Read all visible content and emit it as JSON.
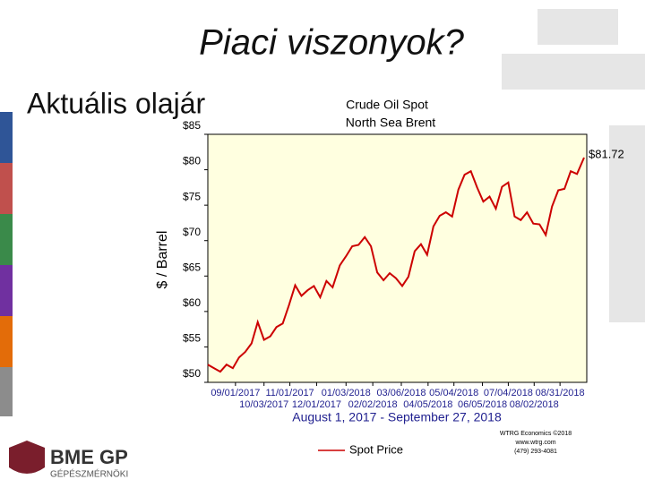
{
  "header": {
    "title": "Piaci viszonyok?",
    "subtitle": "Aktuális olajár"
  },
  "logo": {
    "name": "BME GP",
    "subtitle": "GÉPÉSZMÉRNÖKI"
  },
  "chart_data": {
    "type": "line",
    "title": "Crude Oil Spot",
    "subtitle": "North Sea Brent",
    "y_label": "$ / Barrel",
    "x_label": "August 1, 2017 - September 27, 2018",
    "annotation": "$81.72",
    "credits": [
      "WTRG Economics ©2018",
      "www.wtrg.com",
      "(479) 293-4081"
    ],
    "xlim": [
      "2017-08-01",
      "2018-09-30"
    ],
    "ylim": [
      50,
      85
    ],
    "yticks": [
      {
        "value": 50,
        "label": "$50"
      },
      {
        "value": 55,
        "label": "$55"
      },
      {
        "value": 60,
        "label": "$60"
      },
      {
        "value": 65,
        "label": "$65"
      },
      {
        "value": 70,
        "label": "$70"
      },
      {
        "value": 75,
        "label": "$75"
      },
      {
        "value": 80,
        "label": "$80"
      },
      {
        "value": 85,
        "label": "$85"
      }
    ],
    "xticks": [
      {
        "value": "2017-09-01",
        "label": "09/01/2017"
      },
      {
        "value": "2017-10-03",
        "label": "10/03/2017"
      },
      {
        "value": "2017-11-01",
        "label": "11/01/2017"
      },
      {
        "value": "2017-12-01",
        "label": "12/01/2017"
      },
      {
        "value": "2018-01-03",
        "label": "01/03/2018"
      },
      {
        "value": "2018-02-02",
        "label": "02/02/2018"
      },
      {
        "value": "2018-03-06",
        "label": "03/06/2018"
      },
      {
        "value": "2018-04-05",
        "label": "04/05/2018"
      },
      {
        "value": "2018-05-04",
        "label": "05/04/2018"
      },
      {
        "value": "2018-06-05",
        "label": "06/05/2018"
      },
      {
        "value": "2018-07-04",
        "label": "07/04/2018"
      },
      {
        "value": "2018-08-02",
        "label": "08/02/2018"
      },
      {
        "value": "2018-08-31",
        "label": "08/31/2018"
      }
    ],
    "x": [
      "2017-08-01",
      "2017-08-08",
      "2017-08-15",
      "2017-08-22",
      "2017-08-29",
      "2017-09-05",
      "2017-09-12",
      "2017-09-19",
      "2017-09-26",
      "2017-10-03",
      "2017-10-10",
      "2017-10-17",
      "2017-10-24",
      "2017-10-31",
      "2017-11-07",
      "2017-11-14",
      "2017-11-21",
      "2017-11-28",
      "2017-12-05",
      "2017-12-12",
      "2017-12-19",
      "2017-12-27",
      "2018-01-03",
      "2018-01-10",
      "2018-01-17",
      "2018-01-24",
      "2018-01-31",
      "2018-02-07",
      "2018-02-14",
      "2018-02-21",
      "2018-02-28",
      "2018-03-07",
      "2018-03-14",
      "2018-03-21",
      "2018-03-28",
      "2018-04-04",
      "2018-04-11",
      "2018-04-18",
      "2018-04-25",
      "2018-05-02",
      "2018-05-09",
      "2018-05-16",
      "2018-05-23",
      "2018-05-30",
      "2018-06-06",
      "2018-06-13",
      "2018-06-20",
      "2018-06-27",
      "2018-07-04",
      "2018-07-11",
      "2018-07-18",
      "2018-07-25",
      "2018-08-01",
      "2018-08-08",
      "2018-08-15",
      "2018-08-22",
      "2018-08-29",
      "2018-09-05",
      "2018-09-12",
      "2018-09-19",
      "2018-09-27"
    ],
    "series": [
      {
        "name": "Spot Price",
        "color": "#cc0000",
        "values": [
          52.5,
          52.0,
          51.5,
          52.5,
          52.0,
          53.5,
          54.3,
          55.5,
          58.5,
          56.0,
          56.5,
          57.8,
          58.3,
          60.9,
          63.7,
          62.2,
          63.0,
          63.6,
          62.0,
          64.3,
          63.4,
          66.5,
          67.8,
          69.2,
          69.4,
          70.5,
          69.2,
          65.5,
          64.4,
          65.4,
          64.7,
          63.6,
          64.9,
          68.5,
          69.5,
          68.0,
          72.0,
          73.5,
          74.0,
          73.4,
          77.2,
          79.3,
          79.8,
          77.5,
          75.5,
          76.2,
          74.5,
          77.6,
          78.2,
          73.4,
          72.9,
          74.0,
          72.4,
          72.3,
          70.8,
          74.8,
          77.1,
          77.3,
          79.8,
          79.4,
          81.72
        ]
      }
    ]
  }
}
